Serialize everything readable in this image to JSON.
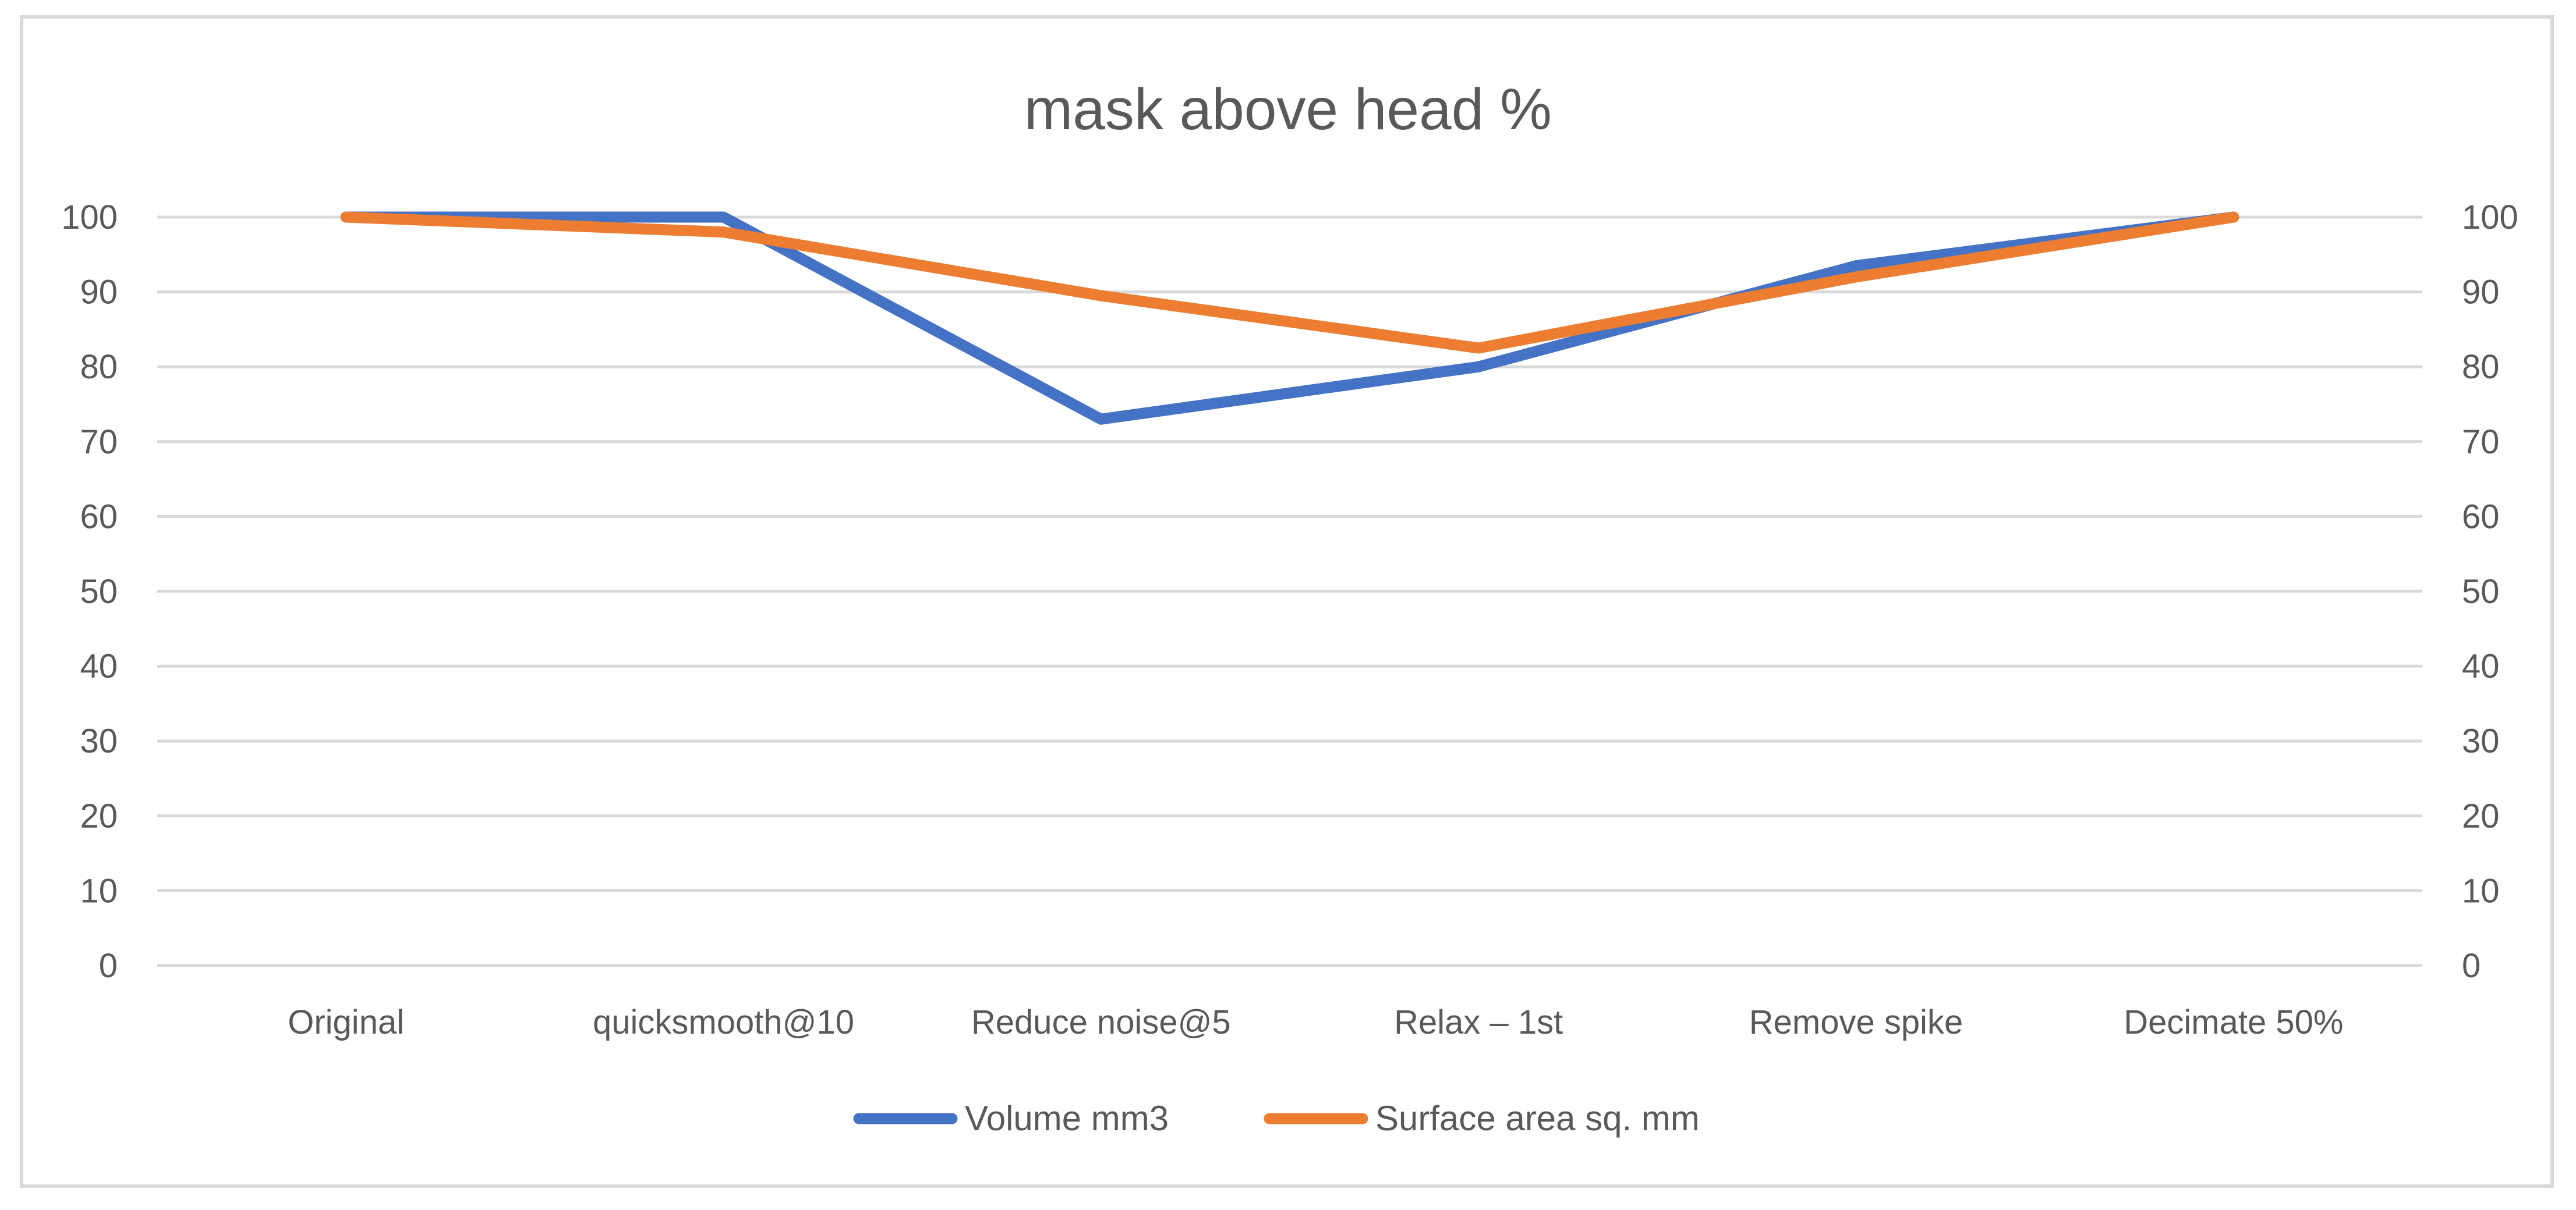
{
  "chart_data": {
    "type": "line",
    "title": "mask above head  %",
    "xlabel": "",
    "ylabel": "",
    "categories": [
      "Original",
      "quicksmooth@10",
      "Reduce noise@5",
      "Relax – 1st",
      "Remove spike",
      "Decimate 50%"
    ],
    "yticks": [
      "0",
      "10",
      "20",
      "30",
      "40",
      "50",
      "60",
      "70",
      "80",
      "90",
      "100"
    ],
    "ylim": [
      0,
      100
    ],
    "secondary_axis": true,
    "grid": true,
    "legend_position": "bottom",
    "series": [
      {
        "name": "Volume mm3",
        "color": "#4472c4",
        "values": [
          100,
          100,
          73,
          80,
          93.5,
          100
        ]
      },
      {
        "name": "Surface area sq. mm",
        "color": "#ed7d31",
        "values": [
          100,
          98,
          89.5,
          82.5,
          92,
          100
        ]
      }
    ]
  }
}
